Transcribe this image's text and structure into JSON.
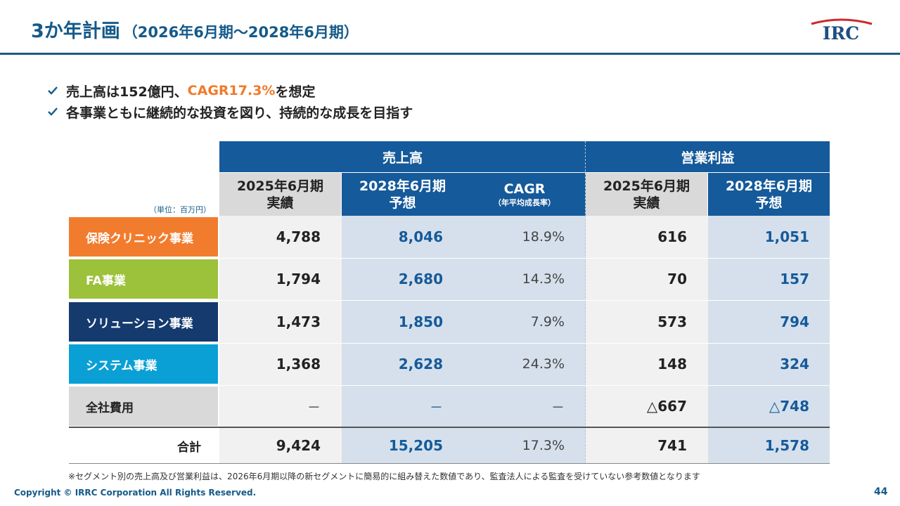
{
  "header": {
    "title": "3か年計画",
    "subtitle": "（2026年6月期～2028年6月期）",
    "logo_text": "IRC"
  },
  "bullets": [
    {
      "before": "売上高は152億円、",
      "highlight": "CAGR17.3%",
      "after": "を想定"
    },
    {
      "before": "各事業ともに継続的な投資を図り、持続的な成長を目指す",
      "highlight": "",
      "after": ""
    }
  ],
  "table": {
    "unit_label": "（単位：百万円）",
    "group_headers": {
      "sales": "売上高",
      "profit": "営業利益"
    },
    "columns": [
      {
        "line1": "2025年6月期",
        "line2": "実績"
      },
      {
        "line1": "2028年6月期",
        "line2": "予想"
      },
      {
        "line1": "CAGR",
        "line2": "（年平均成長率）"
      },
      {
        "line1": "2025年6月期",
        "line2": "実績"
      },
      {
        "line1": "2028年6月期",
        "line2": "予想"
      }
    ],
    "rows": [
      {
        "label": "保険クリニック事業",
        "color": "#f27c2d",
        "values": [
          "4,788",
          "8,046",
          "18.9%",
          "616",
          "1,051"
        ]
      },
      {
        "label": "FA事業",
        "color": "#9cc13a",
        "values": [
          "1,794",
          "2,680",
          "14.3%",
          "70",
          "157"
        ]
      },
      {
        "label": "ソリューション事業",
        "color": "#143a6e",
        "values": [
          "1,473",
          "1,850",
          "7.9%",
          "573",
          "794"
        ]
      },
      {
        "label": "システム事業",
        "color": "#0aa0d6",
        "values": [
          "1,368",
          "2,628",
          "24.3%",
          "148",
          "324"
        ]
      },
      {
        "label": "全社費用",
        "color": "#d9d9d9",
        "values": [
          "－",
          "－",
          "－",
          "△667",
          "△748"
        ]
      }
    ],
    "total": {
      "label": "合計",
      "values": [
        "9,424",
        "15,205",
        "17.3%",
        "741",
        "1,578"
      ]
    }
  },
  "footer": {
    "note": "※セグメント別の売上高及び営業利益は、2026年6月期以降の新セグメントに簡易的に組み替えた数値であり、監査法人による監査を受けていない参考数値となります",
    "copyright": "Copyright © IRRC Corporation All Rights Reserved.",
    "page_number": "44"
  },
  "colors": {
    "navy": "#155a9a",
    "title_blue": "#155a8a",
    "orange": "#f07a2a",
    "check_icon": "#155a8a"
  }
}
